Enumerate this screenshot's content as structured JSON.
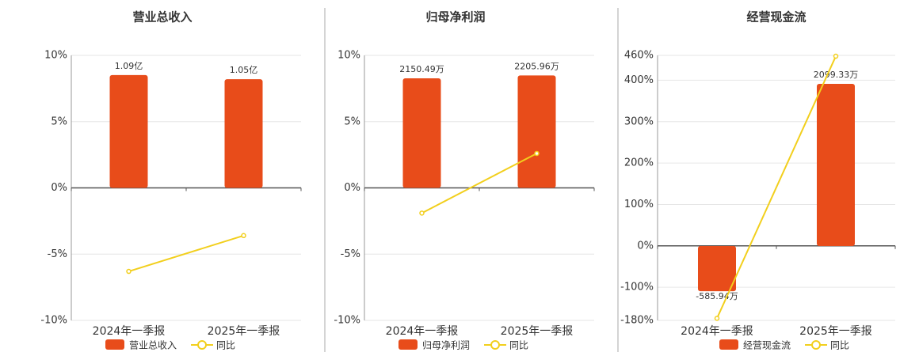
{
  "chart_data": [
    {
      "type": "combo",
      "title": "营业总收入",
      "categories": [
        "2024年一季报",
        "2025年一季报"
      ],
      "series": [
        {
          "name": "营业总收入",
          "type": "bar",
          "color": "#e84c1a",
          "axis": "y2",
          "values": [
            1.09,
            1.05
          ],
          "value_labels": [
            "1.09亿",
            "1.05亿"
          ]
        },
        {
          "name": "同比",
          "type": "line",
          "color": "#f2cf1d",
          "values": [
            -6.3,
            -3.6
          ]
        }
      ],
      "ylim": [
        -10,
        10
      ],
      "yticks": [
        {
          "value": -10,
          "label": "-10%"
        },
        {
          "value": -5,
          "label": "-5%"
        },
        {
          "value": 0,
          "label": "0%"
        },
        {
          "value": 5,
          "label": "5%"
        },
        {
          "value": 10,
          "label": "10%"
        }
      ],
      "y2lim": [
        -1.28,
        1.28
      ],
      "grid": true
    },
    {
      "type": "combo",
      "title": "归母净利润",
      "categories": [
        "2024年一季报",
        "2025年一季报"
      ],
      "series": [
        {
          "name": "归母净利润",
          "type": "bar",
          "color": "#e84c1a",
          "axis": "y2",
          "values": [
            2150.49,
            2205.96
          ],
          "value_labels": [
            "2150.49万",
            "2205.96万"
          ]
        },
        {
          "name": "同比",
          "type": "line",
          "color": "#f2cf1d",
          "values": [
            -1.9,
            2.6
          ]
        }
      ],
      "ylim": [
        -10,
        10
      ],
      "yticks": [
        {
          "value": -10,
          "label": "-10%"
        },
        {
          "value": -5,
          "label": "-5%"
        },
        {
          "value": 0,
          "label": "0%"
        },
        {
          "value": 5,
          "label": "5%"
        },
        {
          "value": 10,
          "label": "10%"
        }
      ],
      "y2lim": [
        -2600,
        2600
      ],
      "grid": true
    },
    {
      "type": "combo",
      "title": "经营现金流",
      "categories": [
        "2024年一季报",
        "2025年一季报"
      ],
      "series": [
        {
          "name": "经营现金流",
          "type": "bar",
          "color": "#e84c1a",
          "axis": "y2",
          "values": [
            -585.94,
            2099.33
          ],
          "value_labels": [
            "-585.94万",
            "2099.33万"
          ]
        },
        {
          "name": "同比",
          "type": "line",
          "color": "#f2cf1d",
          "values": [
            -175,
            458
          ]
        }
      ],
      "ylim": [
        -180,
        460
      ],
      "yticks": [
        {
          "value": -180,
          "label": "-180%"
        },
        {
          "value": -100,
          "label": "-100%"
        },
        {
          "value": 0,
          "label": "0%"
        },
        {
          "value": 100,
          "label": "100%"
        },
        {
          "value": 200,
          "label": "200%"
        },
        {
          "value": 300,
          "label": "300%"
        },
        {
          "value": 400,
          "label": "400%"
        },
        {
          "value": 460,
          "label": "460%"
        }
      ],
      "y2lim": [
        -963,
        2468
      ],
      "grid": true
    }
  ]
}
